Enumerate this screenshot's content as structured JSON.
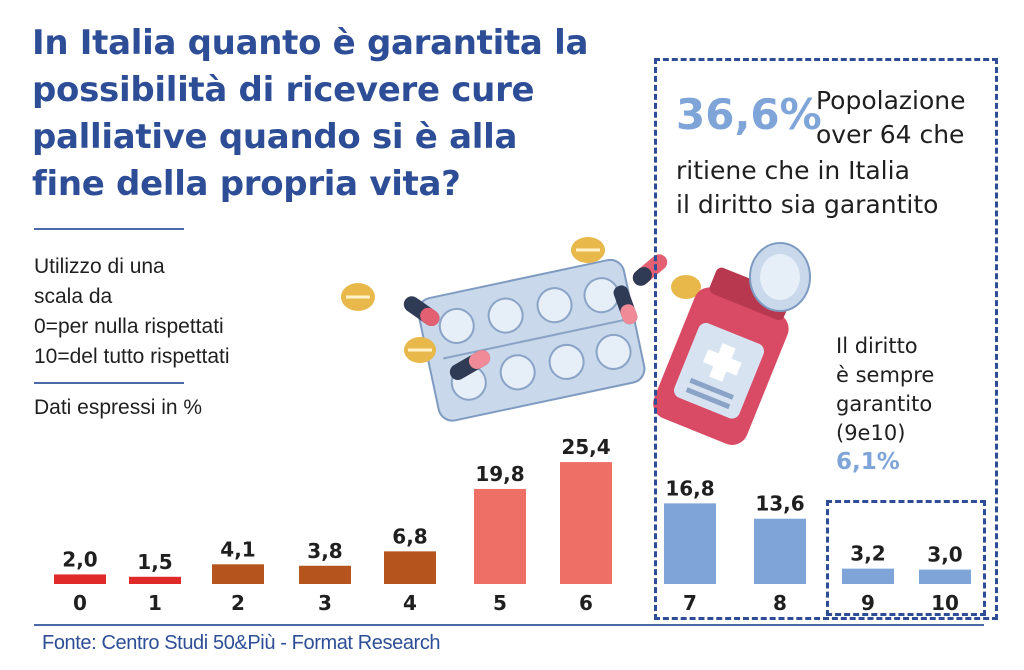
{
  "title": "In Italia quanto è garantita la possibilità di ricevere cure palliative quando si è alla fine della propria vita?",
  "scale_note": [
    "Utilizzo di una",
    "scala da",
    "0=per nulla rispettati",
    "10=del tutto rispettati"
  ],
  "units_note": "Dati espressi in %",
  "callout": {
    "percent": "36,6%",
    "text_line1": "Popolazione",
    "text_line2": "over 64 che",
    "text_line3": "ritiene che in Italia",
    "text_line4": "il diritto sia garantito"
  },
  "always_guaranteed": {
    "lines": [
      "Il diritto",
      "è sempre",
      "garantito",
      "(9e10)"
    ],
    "percent": "6,1%"
  },
  "footer": "Fonte: Centro Studi 50&Più - Format Research",
  "colors": {
    "title_blue": "#2d4e97",
    "red": "#e02a2a",
    "brown": "#b5541c",
    "salmon": "#ee6f66",
    "light_blue": "#7ea4d8"
  },
  "chart_data": {
    "type": "bar",
    "categories": [
      "0",
      "1",
      "2",
      "3",
      "4",
      "5",
      "6",
      "7",
      "8",
      "9",
      "10"
    ],
    "values": [
      2.0,
      1.5,
      4.1,
      3.8,
      6.8,
      19.8,
      25.4,
      16.8,
      13.6,
      3.2,
      3.0
    ],
    "value_labels": [
      "2,0",
      "1,5",
      "4,1",
      "3,8",
      "6,8",
      "19,8",
      "25,4",
      "16,8",
      "13,6",
      "3,2",
      "3,0"
    ],
    "bar_colors": [
      "#e02a2a",
      "#e02a2a",
      "#b5541c",
      "#b5541c",
      "#b5541c",
      "#ee6f66",
      "#ee6f66",
      "#7ea4d8",
      "#7ea4d8",
      "#7ea4d8",
      "#7ea4d8"
    ],
    "ylim": [
      0,
      26
    ],
    "grid": false,
    "legend": "none"
  }
}
